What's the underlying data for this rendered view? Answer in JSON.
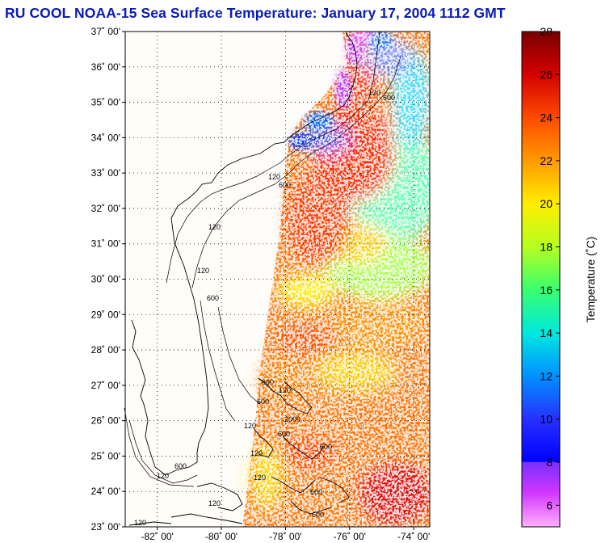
{
  "title": "RU COOL  NOAA-15  Sea Surface Temperature:  January 17, 2004 1112 GMT",
  "map": {
    "lat_range": [
      23,
      37
    ],
    "lon_range": [
      -83,
      -73.5
    ],
    "lat_ticks": [
      {
        "value": 37,
        "label": "37˚ 00'"
      },
      {
        "value": 36,
        "label": "36˚ 00'"
      },
      {
        "value": 35,
        "label": "35˚ 00'"
      },
      {
        "value": 34,
        "label": "34˚ 00'"
      },
      {
        "value": 33,
        "label": "33˚ 00'"
      },
      {
        "value": 32,
        "label": "32˚ 00'"
      },
      {
        "value": 31,
        "label": "31˚ 00'"
      },
      {
        "value": 30,
        "label": "30˚ 00'"
      },
      {
        "value": 29,
        "label": "29˚ 00'"
      },
      {
        "value": 28,
        "label": "28˚ 00'"
      },
      {
        "value": 27,
        "label": "27˚ 00'"
      },
      {
        "value": 26,
        "label": "26˚ 00'"
      },
      {
        "value": 25,
        "label": "25˚ 00'"
      },
      {
        "value": 24,
        "label": "24˚ 00'"
      },
      {
        "value": 23,
        "label": "23˚ 00'"
      }
    ],
    "lon_ticks": [
      {
        "value": -82,
        "label": "-82˚ 00'"
      },
      {
        "value": -80,
        "label": "-80˚ 00'"
      },
      {
        "value": -78,
        "label": "-78˚ 00'"
      },
      {
        "value": -76,
        "label": "-76˚ 00'"
      },
      {
        "value": -74,
        "label": "-74˚ 00'"
      }
    ],
    "contour_labels": [
      "120",
      "600",
      "120",
      "600",
      "120",
      "600",
      "120",
      "600",
      "120",
      "600",
      "2000",
      "120",
      "600",
      "120",
      "600",
      "120",
      "600",
      "120",
      "600",
      "120",
      "120",
      "600"
    ]
  },
  "colorbar": {
    "label": "Temperature (˚C)",
    "range": [
      5,
      28
    ],
    "ticks": [
      {
        "value": 28,
        "label": "28"
      },
      {
        "value": 26,
        "label": "26"
      },
      {
        "value": 24,
        "label": "24"
      },
      {
        "value": 22,
        "label": "22"
      },
      {
        "value": 20,
        "label": "20"
      },
      {
        "value": 18,
        "label": "18"
      },
      {
        "value": 16,
        "label": "16"
      },
      {
        "value": 14,
        "label": "14"
      },
      {
        "value": 12,
        "label": "12"
      },
      {
        "value": 10,
        "label": "10"
      },
      {
        "value": 8,
        "label": "8"
      },
      {
        "value": 6,
        "label": "6"
      }
    ],
    "colors": {
      "28": "#7a0000",
      "26": "#e01010",
      "24": "#ff4a00",
      "22": "#ff9a00",
      "20": "#ffee00",
      "18": "#b6ff20",
      "16": "#38ff70",
      "14": "#00e8e0",
      "12": "#0090ff",
      "10": "#2830ff",
      "8": "#0000ff",
      "7.9": "#7a30ff",
      "6": "#ff30ff",
      "5": "#ffb0ff"
    }
  }
}
